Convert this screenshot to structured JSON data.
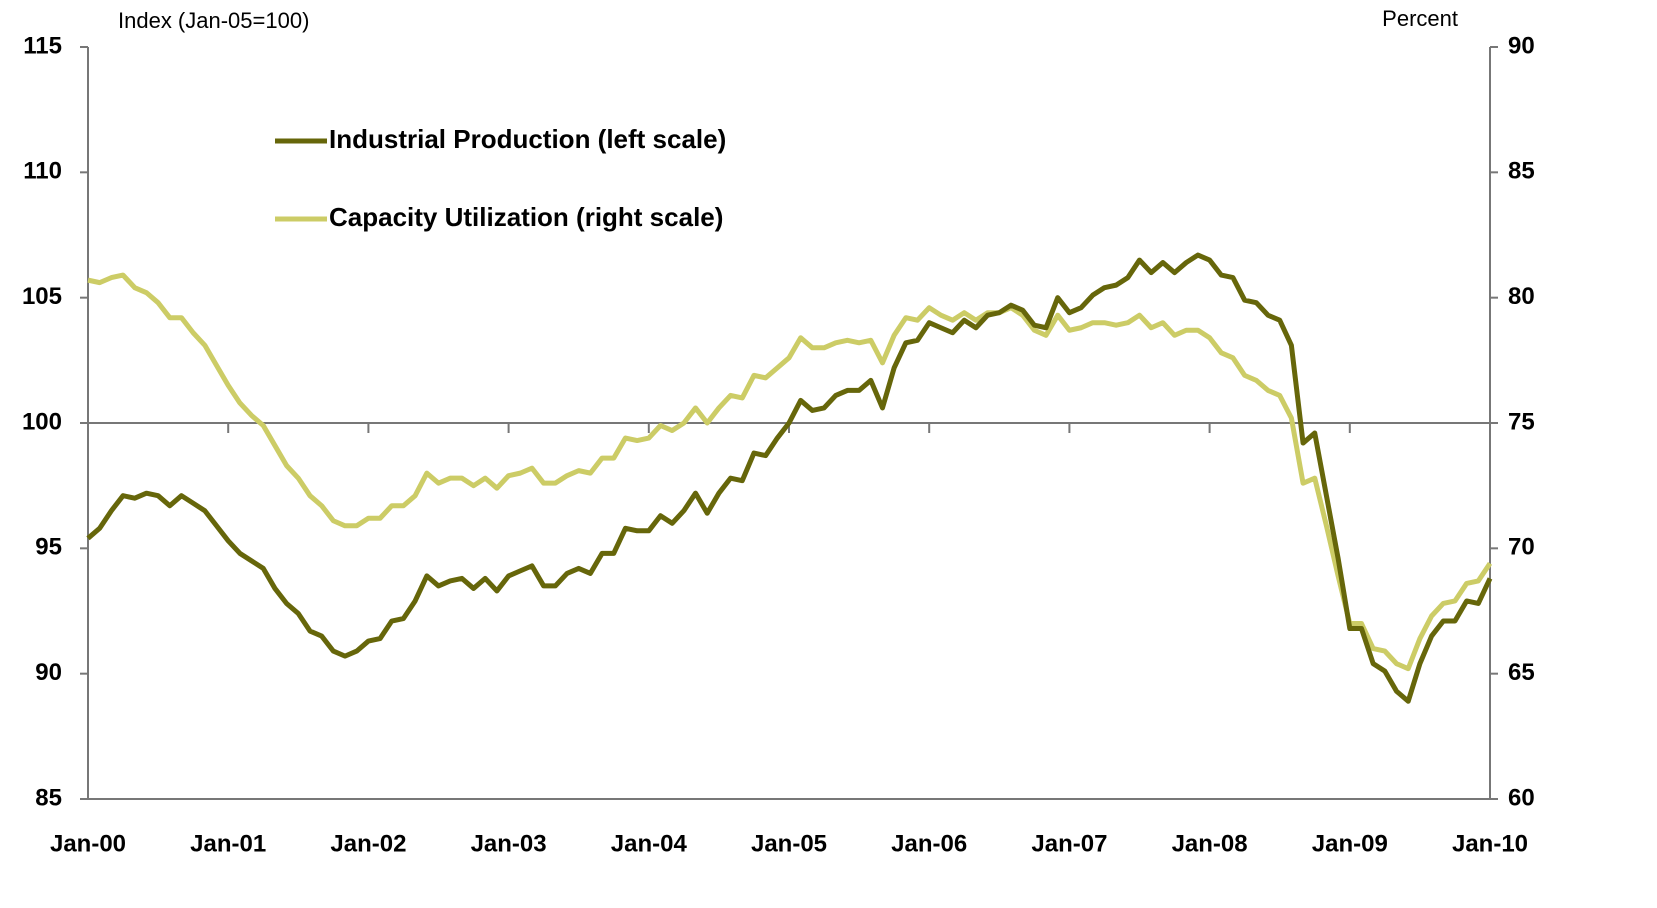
{
  "chart_data": {
    "type": "line",
    "y_axis_title": "Index (Jan-05=100)",
    "y2_axis_title": "Percent",
    "categories": [
      "Jan-00",
      null,
      null,
      null,
      null,
      null,
      null,
      null,
      null,
      null,
      null,
      null,
      "Jan-01",
      null,
      null,
      null,
      null,
      null,
      null,
      null,
      null,
      null,
      null,
      null,
      "Jan-02",
      null,
      null,
      null,
      null,
      null,
      null,
      null,
      null,
      null,
      null,
      null,
      "Jan-03",
      null,
      null,
      null,
      null,
      null,
      null,
      null,
      null,
      null,
      null,
      null,
      "Jan-04",
      null,
      null,
      null,
      null,
      null,
      null,
      null,
      null,
      null,
      null,
      null,
      "Jan-05",
      null,
      null,
      null,
      null,
      null,
      null,
      null,
      null,
      null,
      null,
      null,
      "Jan-06",
      null,
      null,
      null,
      null,
      null,
      null,
      null,
      null,
      null,
      null,
      null,
      "Jan-07",
      null,
      null,
      null,
      null,
      null,
      null,
      null,
      null,
      null,
      null,
      null,
      "Jan-08",
      null,
      null,
      null,
      null,
      null,
      null,
      null,
      null,
      null,
      null,
      null,
      "Jan-09",
      null,
      null,
      null,
      null,
      null,
      null,
      null,
      null,
      null,
      null,
      null,
      "Jan-10"
    ],
    "series": [
      {
        "name": "Industrial Production (left scale)",
        "color": "#66660a",
        "axis": "y",
        "values": [
          95.4,
          95.8,
          96.5,
          97.1,
          97.0,
          97.2,
          97.1,
          96.7,
          97.1,
          96.8,
          96.5,
          95.9,
          95.3,
          94.8,
          94.5,
          94.2,
          93.4,
          92.8,
          92.4,
          91.7,
          91.5,
          90.9,
          90.7,
          90.9,
          91.3,
          91.4,
          92.1,
          92.2,
          92.9,
          93.9,
          93.5,
          93.7,
          93.8,
          93.4,
          93.8,
          93.3,
          93.9,
          94.1,
          94.3,
          93.5,
          93.5,
          94.0,
          94.2,
          94.0,
          94.8,
          94.8,
          95.8,
          95.7,
          95.7,
          96.3,
          96.0,
          96.5,
          97.2,
          96.4,
          97.2,
          97.8,
          97.7,
          98.8,
          98.7,
          99.4,
          100.0,
          100.9,
          100.5,
          100.6,
          101.1,
          101.3,
          101.3,
          101.7,
          100.6,
          102.2,
          103.2,
          103.3,
          104.0,
          103.8,
          103.6,
          104.1,
          103.8,
          104.3,
          104.4,
          104.7,
          104.5,
          103.9,
          103.8,
          105.0,
          104.4,
          104.6,
          105.1,
          105.4,
          105.5,
          105.8,
          106.5,
          106.0,
          106.4,
          106.0,
          106.4,
          106.7,
          106.5,
          105.9,
          105.8,
          104.9,
          104.8,
          104.3,
          104.1,
          103.1,
          99.2,
          99.6,
          97.1,
          94.6,
          91.8,
          91.8,
          90.4,
          90.1,
          89.3,
          88.9,
          90.4,
          91.5,
          92.1,
          92.1,
          92.9,
          92.8,
          93.8
        ]
      },
      {
        "name": "Capacity Utilization (right scale)",
        "color": "#cccc66",
        "axis": "y2",
        "values": [
          80.7,
          80.6,
          80.8,
          80.9,
          80.4,
          80.2,
          79.8,
          79.2,
          79.2,
          78.6,
          78.1,
          77.3,
          76.5,
          75.8,
          75.3,
          74.9,
          74.1,
          73.3,
          72.8,
          72.1,
          71.7,
          71.1,
          70.9,
          70.9,
          71.2,
          71.2,
          71.7,
          71.7,
          72.1,
          73.0,
          72.6,
          72.8,
          72.8,
          72.5,
          72.8,
          72.4,
          72.9,
          73.0,
          73.2,
          72.6,
          72.6,
          72.9,
          73.1,
          73.0,
          73.6,
          73.6,
          74.4,
          74.3,
          74.4,
          74.9,
          74.7,
          75.0,
          75.6,
          75.0,
          75.6,
          76.1,
          76.0,
          76.9,
          76.8,
          77.2,
          77.6,
          78.4,
          78.0,
          78.0,
          78.2,
          78.3,
          78.2,
          78.3,
          77.4,
          78.5,
          79.2,
          79.1,
          79.6,
          79.3,
          79.1,
          79.4,
          79.1,
          79.4,
          79.4,
          79.6,
          79.3,
          78.7,
          78.5,
          79.3,
          78.7,
          78.8,
          79.0,
          79.0,
          78.9,
          79.0,
          79.3,
          78.8,
          79.0,
          78.5,
          78.7,
          78.7,
          78.4,
          77.8,
          77.6,
          76.9,
          76.7,
          76.3,
          76.1,
          75.2,
          72.6,
          72.8,
          70.9,
          68.9,
          67.0,
          67.0,
          66.0,
          65.9,
          65.4,
          65.2,
          66.4,
          67.3,
          67.8,
          67.9,
          68.6,
          68.7,
          69.4
        ]
      }
    ],
    "ylim": [
      85,
      115
    ],
    "yticks": [
      85,
      90,
      95,
      100,
      105,
      110,
      115
    ],
    "y2lim": [
      60,
      90
    ],
    "y2ticks": [
      60,
      65,
      70,
      75,
      80,
      85,
      90
    ],
    "x_axis_crosses_at": 100,
    "grid": false,
    "legend": "upper-left"
  }
}
